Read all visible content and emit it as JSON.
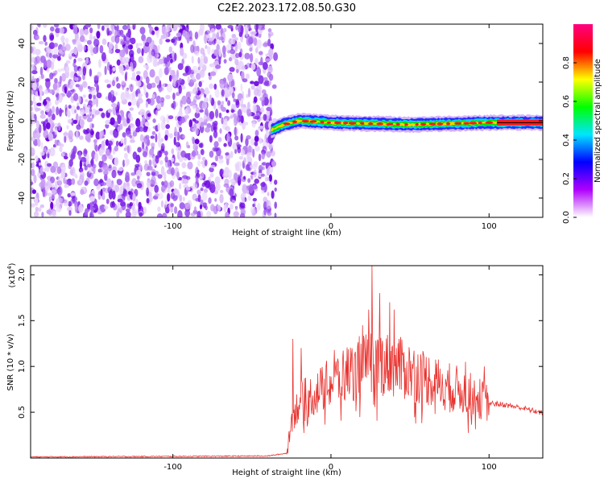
{
  "title": "C2E2.2023.172.08.50.G30",
  "chart_data": [
    {
      "type": "heatmap",
      "description_units": "frequency vs height",
      "xlabel": "Height of straight line (km)",
      "ylabel": "Frequency (Hz)",
      "xlim": [
        -190,
        134
      ],
      "ylim": [
        -50,
        50
      ],
      "x_ticks": [
        -100,
        0,
        100
      ],
      "y_ticks": [
        40,
        20,
        0,
        -20,
        -40
      ],
      "noise_region_x": [
        -190,
        -38
      ],
      "signal_band": {
        "x_start": -38,
        "x_end": 134,
        "center_freq": [
          [
            -38,
            -5
          ],
          [
            -30,
            -2
          ],
          [
            -20,
            0
          ],
          [
            0,
            -1
          ],
          [
            50,
            -2
          ],
          [
            100,
            -1
          ],
          [
            134,
            -1
          ]
        ],
        "half_width_hz": 3
      },
      "colorbar": {
        "label": "Normalized spectral amplitude",
        "range": [
          0,
          1
        ],
        "ticks": [
          "0.0",
          "0.2",
          "0.4",
          "0.6",
          "0.8"
        ],
        "colors": [
          "#ffffff",
          "#b000ff",
          "#0000ff",
          "#00e5ff",
          "#00ff00",
          "#ffff00",
          "#ff0000",
          "#ff0080"
        ]
      }
    },
    {
      "type": "line",
      "xlabel": "Height of straight line (km)",
      "ylabel": "SNR (10 * v/v)",
      "y_multiplier": "(x10",
      "y_multiplier_exp": "4",
      "y_multiplier_close": ")",
      "xlim": [
        -190,
        134
      ],
      "ylim": [
        0,
        2.1
      ],
      "x_ticks": [
        -100,
        0,
        100
      ],
      "y_ticks": [
        "0.5",
        "1.0",
        "1.5",
        "2.0"
      ],
      "color": "#e8332f",
      "envelope": [
        [
          -190,
          0.01
        ],
        [
          -40,
          0.02
        ],
        [
          -28,
          0.05
        ],
        [
          -25,
          0.4
        ],
        [
          -20,
          0.62
        ],
        [
          -10,
          0.7
        ],
        [
          0,
          0.82
        ],
        [
          10,
          0.92
        ],
        [
          20,
          1.0
        ],
        [
          25,
          1.05
        ],
        [
          30,
          1.05
        ],
        [
          40,
          1.0
        ],
        [
          50,
          0.95
        ],
        [
          60,
          0.88
        ],
        [
          70,
          0.8
        ],
        [
          80,
          0.75
        ],
        [
          90,
          0.68
        ],
        [
          100,
          0.6
        ],
        [
          110,
          0.58
        ],
        [
          120,
          0.55
        ],
        [
          134,
          0.49
        ]
      ],
      "spikes": [
        [
          -24,
          1.3
        ],
        [
          -19,
          1.2
        ],
        [
          2,
          1.18
        ],
        [
          18,
          1.33
        ],
        [
          20,
          1.45
        ],
        [
          24,
          1.62
        ],
        [
          26,
          2.1
        ],
        [
          31,
          1.8
        ],
        [
          37,
          1.7
        ],
        [
          40,
          1.62
        ],
        [
          43,
          1.3
        ],
        [
          85,
          1.05
        ],
        [
          97,
          1.0
        ]
      ]
    }
  ]
}
